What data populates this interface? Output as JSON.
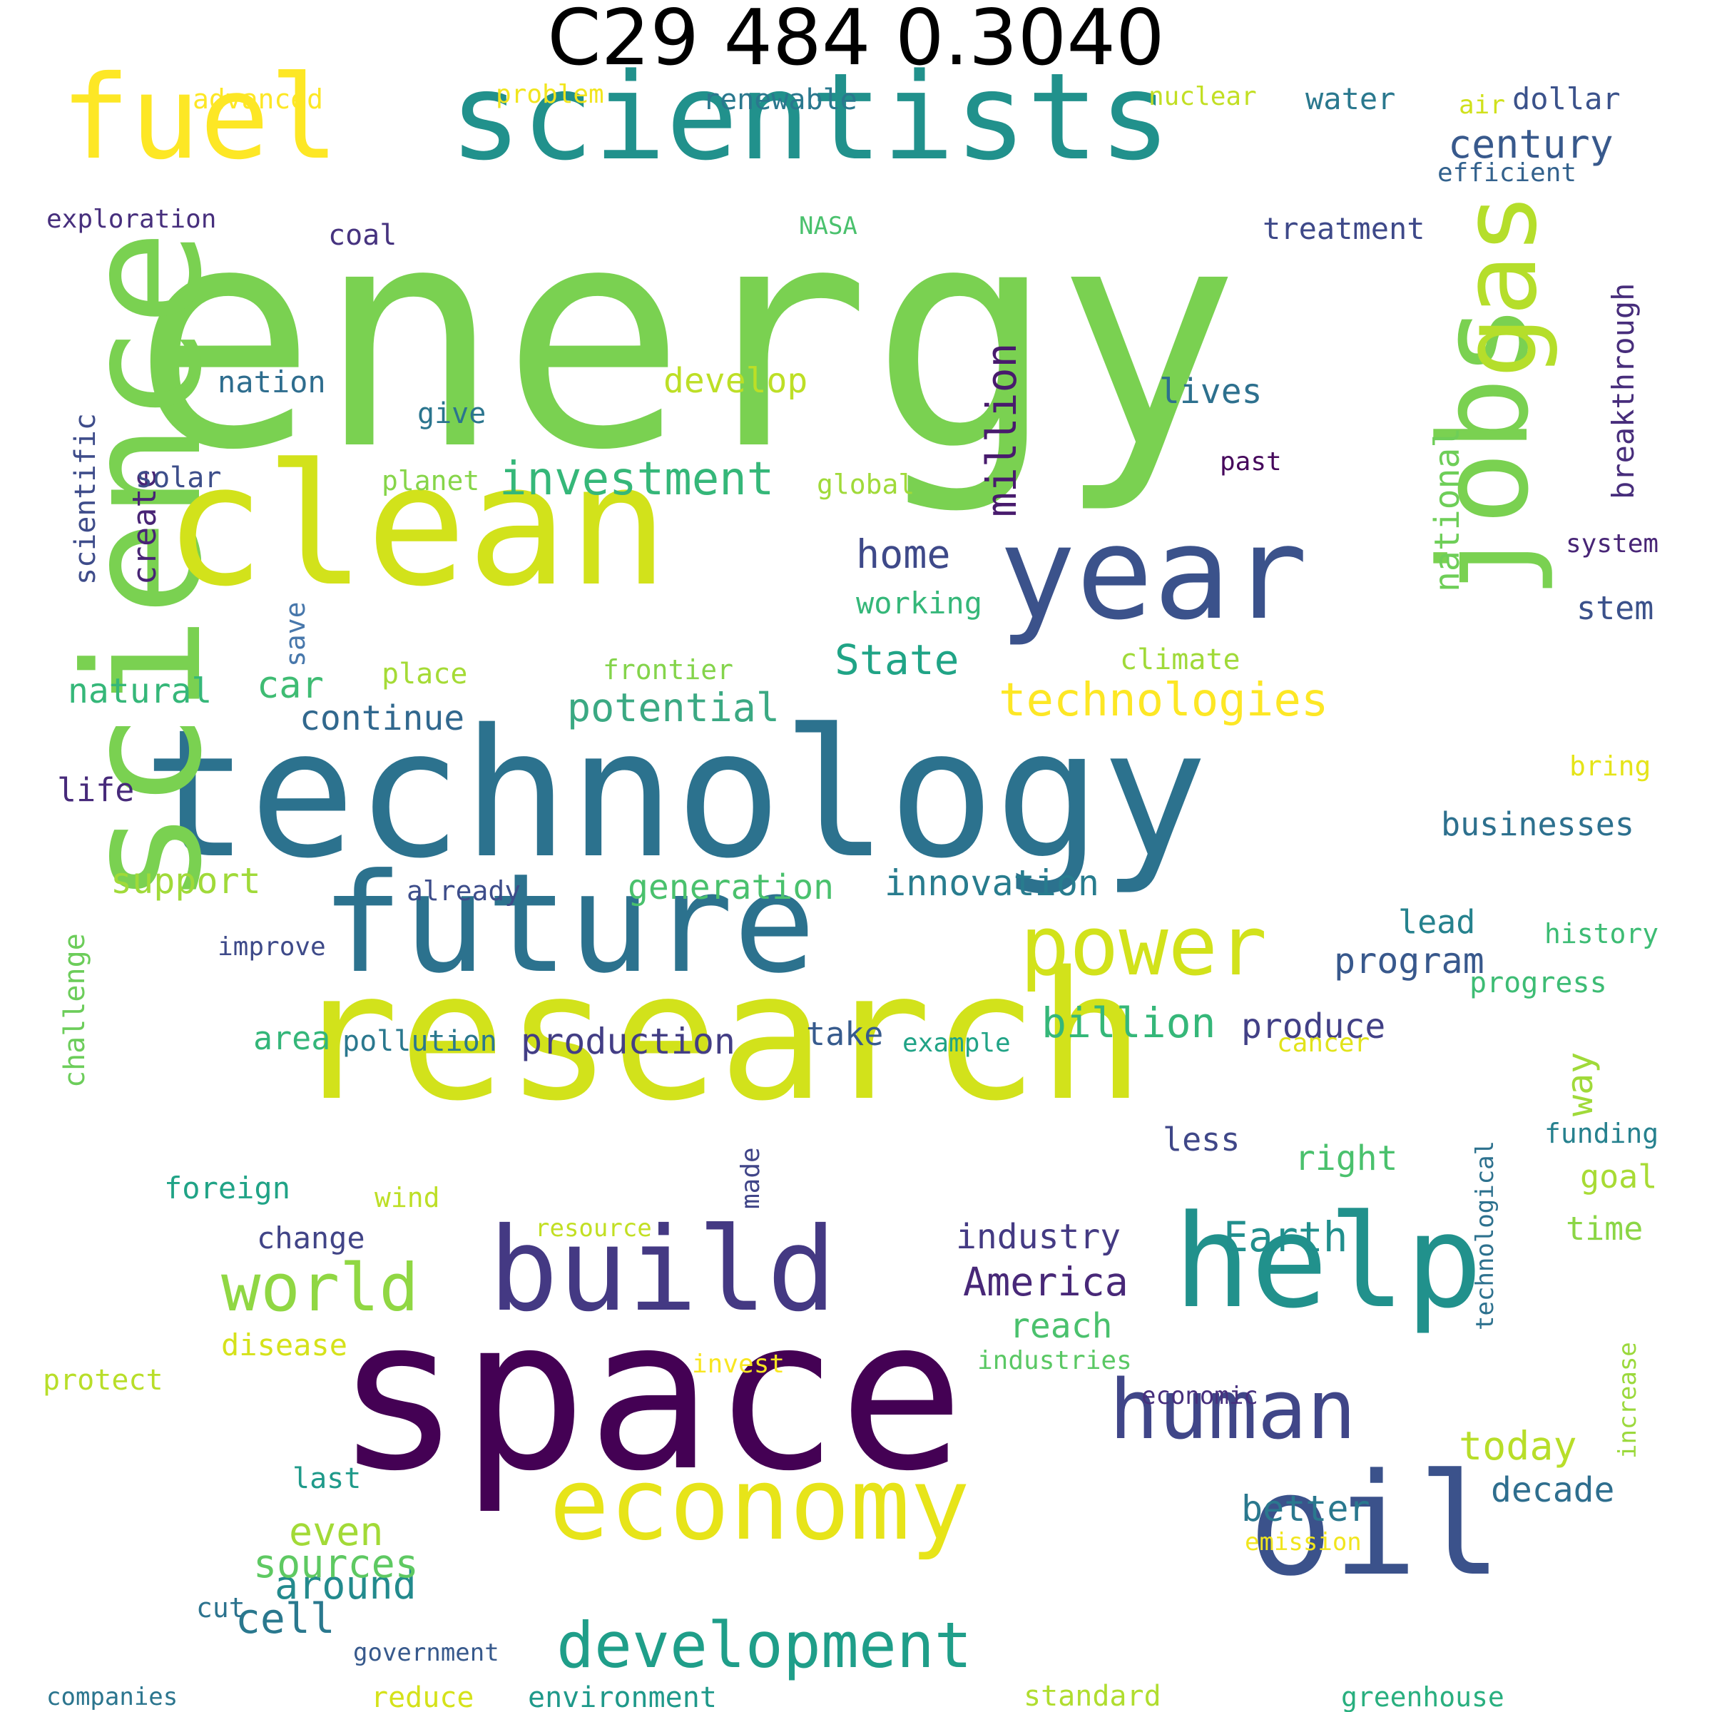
{
  "title": "C29 484 0.3040",
  "words": [
    {
      "text": "energy",
      "color": "#7ad151"
    },
    {
      "text": "research",
      "color": "#d2e21b"
    },
    {
      "text": "technology",
      "color": "#2c728e"
    },
    {
      "text": "space",
      "color": "#440154"
    },
    {
      "text": "science",
      "color": "#7ad151"
    },
    {
      "text": "scientists",
      "color": "#21918c"
    },
    {
      "text": "clean",
      "color": "#d2e21b"
    },
    {
      "text": "fuel",
      "color": "#fde725"
    },
    {
      "text": "future",
      "color": "#2c728e"
    },
    {
      "text": "jobs",
      "color": "#7ad151"
    },
    {
      "text": "year",
      "color": "#3b528b"
    },
    {
      "text": "help",
      "color": "#21918c"
    },
    {
      "text": "oil",
      "color": "#3b528b"
    },
    {
      "text": "build",
      "color": "#443983"
    },
    {
      "text": "economy",
      "color": "#e7e419"
    },
    {
      "text": "gas",
      "color": "#b5de2b"
    },
    {
      "text": "human",
      "color": "#404688"
    },
    {
      "text": "power",
      "color": "#d2e21b"
    },
    {
      "text": "development",
      "color": "#1f9e89"
    },
    {
      "text": "world",
      "color": "#90d743"
    },
    {
      "text": "investment",
      "color": "#35b779"
    },
    {
      "text": "technologies",
      "color": "#fde725"
    },
    {
      "text": "million",
      "color": "#481b6d"
    },
    {
      "text": "billion",
      "color": "#35b779"
    },
    {
      "text": "Earth",
      "color": "#218f8d"
    },
    {
      "text": "America",
      "color": "#482878"
    },
    {
      "text": "innovation",
      "color": "#287c8e"
    },
    {
      "text": "potential",
      "color": "#3ba983"
    },
    {
      "text": "State",
      "color": "#20a486"
    },
    {
      "text": "home",
      "color": "#3e4989"
    },
    {
      "text": "century",
      "color": "#38598c"
    },
    {
      "text": "national",
      "color": "#6ece58"
    },
    {
      "text": "breakthrough",
      "color": "#472d7b"
    },
    {
      "text": "program",
      "color": "#38588c"
    },
    {
      "text": "production",
      "color": "#433e85"
    },
    {
      "text": "produce",
      "color": "#424086"
    },
    {
      "text": "cell",
      "color": "#2a788e"
    },
    {
      "text": "around",
      "color": "#238a8d"
    },
    {
      "text": "sources",
      "color": "#5ec962"
    },
    {
      "text": "even",
      "color": "#a2da37"
    },
    {
      "text": "today",
      "color": "#b8de29"
    },
    {
      "text": "better",
      "color": "#2a788e"
    },
    {
      "text": "decade",
      "color": "#2e6e8e"
    },
    {
      "text": "way",
      "color": "#a0da39"
    },
    {
      "text": "car",
      "color": "#3fbc73"
    },
    {
      "text": "natural",
      "color": "#35b779"
    },
    {
      "text": "support",
      "color": "#a0da39"
    },
    {
      "text": "generation",
      "color": "#4ac16d"
    },
    {
      "text": "continue",
      "color": "#31688e"
    },
    {
      "text": "businesses",
      "color": "#2d708e"
    },
    {
      "text": "lives",
      "color": "#2d708e"
    },
    {
      "text": "develop",
      "color": "#bddf26"
    },
    {
      "text": "create",
      "color": "#482475"
    },
    {
      "text": "solar",
      "color": "#3d4e8a"
    },
    {
      "text": "nation",
      "color": "#2e6d8e"
    },
    {
      "text": "scientific",
      "color": "#3e4c8a"
    },
    {
      "text": "give",
      "color": "#2b758e"
    },
    {
      "text": "lead",
      "color": "#26828e"
    },
    {
      "text": "stem",
      "color": "#3b518b"
    },
    {
      "text": "industry",
      "color": "#443a83"
    },
    {
      "text": "reach",
      "color": "#4ac16d"
    },
    {
      "text": "right",
      "color": "#4ac16d"
    },
    {
      "text": "less",
      "color": "#3f4788"
    },
    {
      "text": "time",
      "color": "#8bd646"
    },
    {
      "text": "goal",
      "color": "#a8db34"
    },
    {
      "text": "take",
      "color": "#375b8d"
    },
    {
      "text": "area",
      "color": "#34b679"
    },
    {
      "text": "pollution",
      "color": "#2a788e"
    },
    {
      "text": "foreign",
      "color": "#20a386"
    },
    {
      "text": "change",
      "color": "#414487"
    },
    {
      "text": "disease",
      "color": "#d5e21a"
    },
    {
      "text": "life",
      "color": "#472a7a"
    },
    {
      "text": "place",
      "color": "#a5db36"
    },
    {
      "text": "climate",
      "color": "#a0da39"
    },
    {
      "text": "save",
      "color": "#4777ab"
    },
    {
      "text": "working",
      "color": "#35b779"
    },
    {
      "text": "global",
      "color": "#a0da39"
    },
    {
      "text": "planet",
      "color": "#86d549"
    },
    {
      "text": "advanced",
      "color": "#fde725"
    },
    {
      "text": "problem",
      "color": "#f1e51d"
    },
    {
      "text": "renewable",
      "color": "#2a788e"
    },
    {
      "text": "nuclear",
      "color": "#c2df23"
    },
    {
      "text": "water",
      "color": "#2a788e"
    },
    {
      "text": "air",
      "color": "#d0e11c"
    },
    {
      "text": "dollar",
      "color": "#3b528b"
    },
    {
      "text": "efficient",
      "color": "#33628d"
    },
    {
      "text": "exploration",
      "color": "#472f7d"
    },
    {
      "text": "NASA",
      "color": "#4ac16d"
    },
    {
      "text": "coal",
      "color": "#46337f"
    },
    {
      "text": "treatment",
      "color": "#3e4989"
    },
    {
      "text": "past",
      "color": "#46085c"
    },
    {
      "text": "system",
      "color": "#482576"
    },
    {
      "text": "bring",
      "color": "#e5e419"
    },
    {
      "text": "history",
      "color": "#3dbc74"
    },
    {
      "text": "progress",
      "color": "#3dbc74"
    },
    {
      "text": "cancer",
      "color": "#e1e31a"
    },
    {
      "text": "example",
      "color": "#20a386"
    },
    {
      "text": "frontier",
      "color": "#84d44b"
    },
    {
      "text": "already",
      "color": "#3d4d8a"
    },
    {
      "text": "improve",
      "color": "#3e4a89"
    },
    {
      "text": "challenge",
      "color": "#6ccd5a"
    },
    {
      "text": "made",
      "color": "#404588"
    },
    {
      "text": "funding",
      "color": "#26818e"
    },
    {
      "text": "technological",
      "color": "#2d718e"
    },
    {
      "text": "wind",
      "color": "#bddf26"
    },
    {
      "text": "resource",
      "color": "#c2df23"
    },
    {
      "text": "invest",
      "color": "#f8e621"
    },
    {
      "text": "industries",
      "color": "#5ac864"
    },
    {
      "text": "economic",
      "color": "#472f7d"
    },
    {
      "text": "increase",
      "color": "#9bd93c"
    },
    {
      "text": "protect",
      "color": "#b8de29"
    },
    {
      "text": "last",
      "color": "#1f9a8a"
    },
    {
      "text": "emission",
      "color": "#f1e51d"
    },
    {
      "text": "cut",
      "color": "#2c738e"
    },
    {
      "text": "government",
      "color": "#37598c"
    },
    {
      "text": "companies",
      "color": "#2b758e"
    },
    {
      "text": "reduce",
      "color": "#d5e21a"
    },
    {
      "text": "environment",
      "color": "#1f998a"
    },
    {
      "text": "standard",
      "color": "#b0dd2f"
    },
    {
      "text": "greenhouse",
      "color": "#29af7f"
    }
  ]
}
